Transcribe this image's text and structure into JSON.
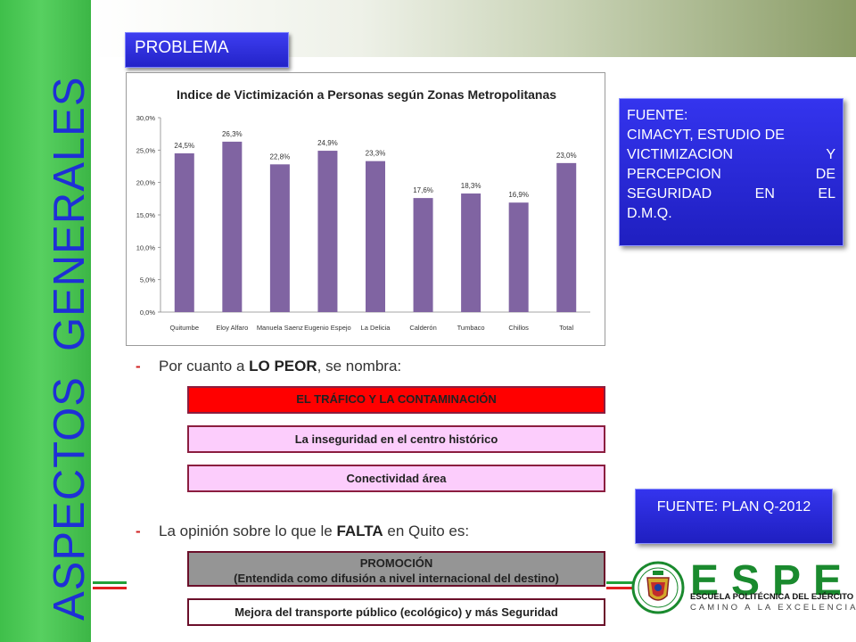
{
  "side_title": {
    "word1": "ASPECTOS",
    "word2": "GENERALES"
  },
  "problema_label": "PROBLEMA",
  "chart_data": {
    "type": "bar",
    "title": "Indice de Victimización a Personas según Zonas Metropolitanas",
    "categories": [
      "Quitumbe",
      "Eloy Alfaro",
      "Manuela Saenz",
      "Eugenio Espejo",
      "La Delicia",
      "Calderón",
      "Tumbaco",
      "Chillos",
      "Total"
    ],
    "values": [
      24.5,
      26.3,
      22.8,
      24.9,
      23.3,
      17.6,
      18.3,
      16.9,
      23.0
    ],
    "data_labels": [
      "24,5%",
      "26,3%",
      "22,8%",
      "24,9%",
      "23,3%",
      "17,6%",
      "18,3%",
      "16,9%",
      "23,0%"
    ],
    "y_ticks": [
      "0,0%",
      "5,0%",
      "10,0%",
      "15,0%",
      "20,0%",
      "25,0%",
      "30,0%"
    ],
    "ylim": [
      0,
      30
    ],
    "xlabel": "",
    "ylabel": "",
    "bar_color": "#8064a2",
    "grid": false
  },
  "fuente_1": {
    "lines": [
      "FUENTE:",
      "CIMACYT, ESTUDIO DE",
      "VICTIMIZACION Y",
      "PERCEPCION DE",
      "SEGURIDAD EN EL",
      "D.M.Q."
    ]
  },
  "fuente_2": {
    "text": "FUENTE: PLAN Q-2012"
  },
  "bullet_1": {
    "dash": "-",
    "prefix": "Por cuanto a ",
    "bold": "LO PEOR",
    "suffix": ", se nombra:"
  },
  "bullet_2": {
    "dash": "-",
    "prefix": "La opinión sobre lo que le ",
    "bold": "FALTA",
    "suffix": " en Quito es:"
  },
  "options_peor": [
    "EL TRÁFICO Y LA CONTAMINACIÓN",
    "La inseguridad en el centro histórico",
    "Conectividad área"
  ],
  "options_falta": {
    "promo_title": "PROMOCIÓN",
    "promo_sub": "(Entendida como difusión a nivel internacional del destino)",
    "transporte": "Mejora del transporte público (ecológico) y más Seguridad"
  },
  "logo": {
    "word": "ESPE",
    "subtitle": "ESCUELA POLITÉCNICA DEL EJÉRCITO",
    "tagline": "CAMINO A LA EXCELENCIA"
  },
  "colors": {
    "side_bar": "#4cc955",
    "title_blue": "#1e2fd6",
    "box_blue": "#2a2ad8",
    "red": "#ff0000",
    "pink": "#fccdfc",
    "gray": "#959595",
    "logo_green": "#1a8a2e"
  }
}
